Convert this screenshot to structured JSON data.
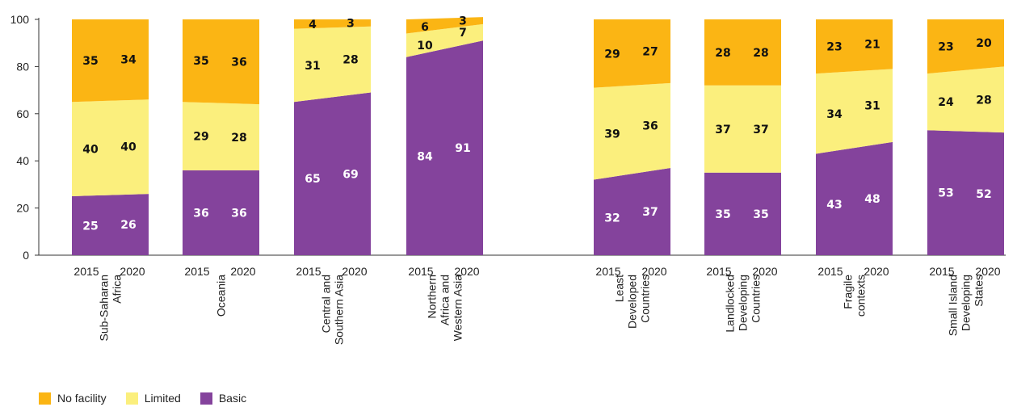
{
  "chart_data": {
    "type": "stacked-area-bar",
    "ylim": [
      0,
      100
    ],
    "yticks": [
      0,
      20,
      40,
      60,
      80,
      100
    ],
    "x_labels": [
      "2015",
      "2020"
    ],
    "colors": {
      "basic": "#84439c",
      "limited": "#fbef7d",
      "no_facility": "#fbb514"
    },
    "series_order": [
      "basic",
      "limited",
      "no_facility"
    ],
    "legend": [
      {
        "key": "no_facility",
        "name": "No facility"
      },
      {
        "key": "limited",
        "name": "Limited"
      },
      {
        "key": "basic",
        "name": "Basic"
      }
    ],
    "groups": [
      {
        "name": [
          "Sub-Saharan",
          "Africa"
        ],
        "basic": [
          25,
          26
        ],
        "limited": [
          40,
          40
        ],
        "no_facility": [
          35,
          34
        ]
      },
      {
        "name": [
          "Oceania"
        ],
        "basic": [
          36,
          36
        ],
        "limited": [
          29,
          28
        ],
        "no_facility": [
          35,
          36
        ]
      },
      {
        "name": [
          "Central and",
          "Southern Asia"
        ],
        "basic": [
          65,
          69
        ],
        "limited": [
          31,
          28
        ],
        "no_facility": [
          4,
          3
        ]
      },
      {
        "name": [
          "Northern",
          "Africa and",
          "Western Asia"
        ],
        "basic": [
          84,
          91
        ],
        "limited": [
          10,
          7
        ],
        "no_facility": [
          6,
          3
        ]
      },
      {
        "name": [
          "Least",
          "Developed",
          "Countries"
        ],
        "basic": [
          32,
          37
        ],
        "limited": [
          39,
          36
        ],
        "no_facility": [
          29,
          27
        ]
      },
      {
        "name": [
          "Landlocked",
          "Developing",
          "Countries"
        ],
        "basic": [
          35,
          35
        ],
        "limited": [
          37,
          37
        ],
        "no_facility": [
          28,
          28
        ]
      },
      {
        "name": [
          "Fragile",
          "contexts"
        ],
        "basic": [
          43,
          48
        ],
        "limited": [
          34,
          31
        ],
        "no_facility": [
          23,
          21
        ]
      },
      {
        "name": [
          "Small Island",
          "Developing",
          "States"
        ],
        "basic": [
          53,
          52
        ],
        "limited": [
          24,
          28
        ],
        "no_facility": [
          23,
          20
        ]
      }
    ]
  }
}
